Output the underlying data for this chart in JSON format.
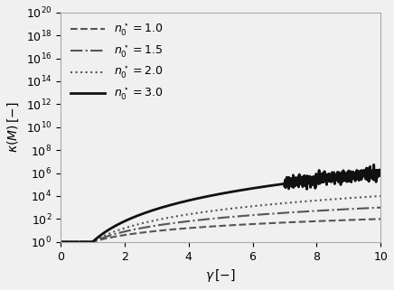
{
  "title": "",
  "xlabel": "$\\gamma\\,[-]$",
  "ylabel": "$\\kappa(M)\\,[-]$",
  "xlim": [
    0,
    10
  ],
  "ylim_log_min": 0,
  "ylim_log_max": 20,
  "series": [
    {
      "n0": 1.0,
      "label": "$n_0^\\star = 1.0$",
      "linestyle": "dashed",
      "color": "#555555",
      "linewidth": 1.5,
      "exponent": 2.0,
      "noisy": false
    },
    {
      "n0": 1.5,
      "label": "$n_0^\\star = 1.5$",
      "linestyle": "dashdot",
      "color": "#555555",
      "linewidth": 1.5,
      "exponent": 3.0,
      "noisy": false
    },
    {
      "n0": 2.0,
      "label": "$n_0^\\star = 2.0$",
      "linestyle": "dotted",
      "color": "#555555",
      "linewidth": 1.5,
      "exponent": 4.0,
      "noisy": false
    },
    {
      "n0": 3.0,
      "label": "$n_0^\\star = 3.0$",
      "linestyle": "solid",
      "color": "#111111",
      "linewidth": 2.0,
      "exponent": 6.0,
      "noisy": true
    }
  ],
  "background_color": "#f0f0f0",
  "legend_fontsize": 9,
  "axis_fontsize": 10,
  "tick_fontsize": 9
}
